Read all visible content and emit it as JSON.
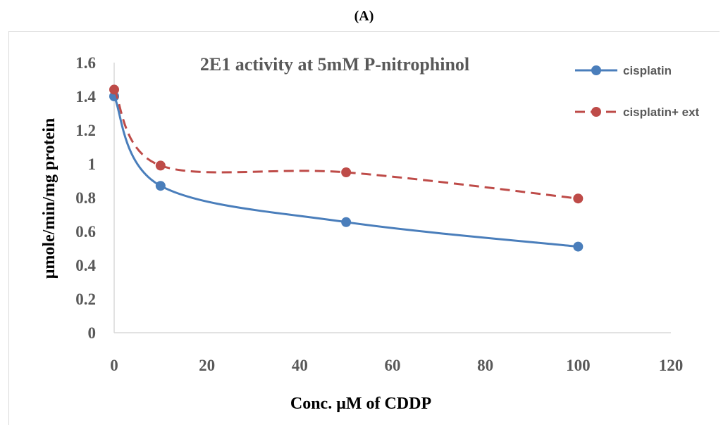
{
  "panel_label": "(A)",
  "chart_data": {
    "type": "line",
    "title": "2E1 activity at 5mM P-nitrophinol",
    "xlabel": "Conc. μM of CDDP",
    "ylabel": "μmole/min/mg protein",
    "xlim": [
      0,
      120
    ],
    "ylim": [
      0,
      1.6
    ],
    "x_ticks": [
      "0",
      "20",
      "40",
      "60",
      "80",
      "100",
      "120"
    ],
    "y_ticks": [
      "0",
      "0.2",
      "0.4",
      "0.6",
      "0.8",
      "1",
      "1.2",
      "1.4",
      "1.6"
    ],
    "grid": false,
    "smoothed": true,
    "legend_position": "right",
    "series": [
      {
        "name": "cisplatin",
        "x": [
          0,
          10,
          50,
          100
        ],
        "values": [
          1.4,
          0.87,
          0.655,
          0.51
        ],
        "color": "#4a7ebb",
        "dash": "solid"
      },
      {
        "name": "cisplatin+ ext",
        "x": [
          0,
          10,
          50,
          100
        ],
        "values": [
          1.44,
          0.99,
          0.95,
          0.795
        ],
        "color": "#be4b48",
        "dash": "dashed"
      }
    ]
  }
}
